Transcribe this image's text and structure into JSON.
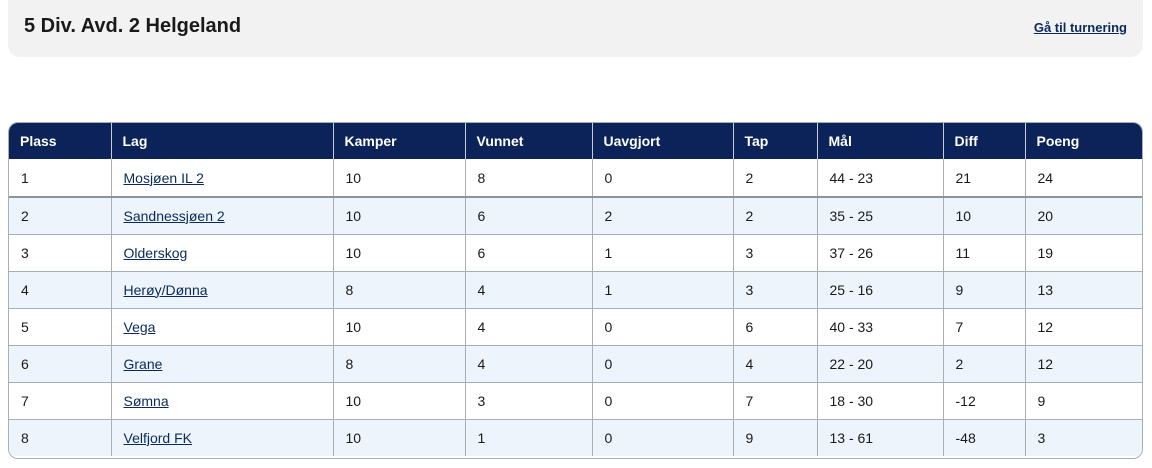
{
  "header": {
    "title": "5 Div. Avd. 2 Helgeland",
    "tournament_link": "Gå til turnering"
  },
  "table": {
    "columns": [
      "Plass",
      "Lag",
      "Kamper",
      "Vunnet",
      "Uavgjort",
      "Tap",
      "Mål",
      "Diff",
      "Poeng"
    ],
    "rows": [
      {
        "plass": "1",
        "lag": "Mosjøen IL 2",
        "kamper": "10",
        "vunnet": "8",
        "uavgjort": "0",
        "tap": "2",
        "maal": "44 - 23",
        "diff": "21",
        "poeng": "24"
      },
      {
        "plass": "2",
        "lag": "Sandnessjøen 2",
        "kamper": "10",
        "vunnet": "6",
        "uavgjort": "2",
        "tap": "2",
        "maal": "35 - 25",
        "diff": "10",
        "poeng": "20"
      },
      {
        "plass": "3",
        "lag": "Olderskog",
        "kamper": "10",
        "vunnet": "6",
        "uavgjort": "1",
        "tap": "3",
        "maal": "37 - 26",
        "diff": "11",
        "poeng": "19"
      },
      {
        "plass": "4",
        "lag": "Herøy/Dønna",
        "kamper": "8",
        "vunnet": "4",
        "uavgjort": "1",
        "tap": "3",
        "maal": "25 - 16",
        "diff": "9",
        "poeng": "13"
      },
      {
        "plass": "5",
        "lag": "Vega",
        "kamper": "10",
        "vunnet": "4",
        "uavgjort": "0",
        "tap": "6",
        "maal": "40 - 33",
        "diff": "7",
        "poeng": "12"
      },
      {
        "plass": "6",
        "lag": "Grane",
        "kamper": "8",
        "vunnet": "4",
        "uavgjort": "0",
        "tap": "4",
        "maal": "22 - 20",
        "diff": "2",
        "poeng": "12"
      },
      {
        "plass": "7",
        "lag": "Sømna",
        "kamper": "10",
        "vunnet": "3",
        "uavgjort": "0",
        "tap": "7",
        "maal": "18 - 30",
        "diff": "-12",
        "poeng": "9"
      },
      {
        "plass": "8",
        "lag": "Velfjord FK",
        "kamper": "10",
        "vunnet": "1",
        "uavgjort": "0",
        "tap": "9",
        "maal": "13 - 61",
        "diff": "-48",
        "poeng": "3"
      }
    ]
  },
  "colors": {
    "header_bg": "#0b2359",
    "row_alt_bg": "#edf4fb",
    "link": "#0b2a5b",
    "title_card_bg": "#f2f2f2"
  }
}
